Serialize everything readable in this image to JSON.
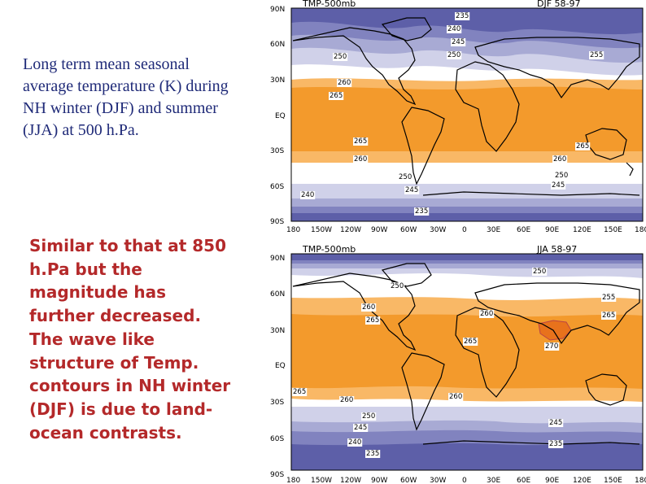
{
  "text": {
    "paragraph1": "Long term mean seasonal average temperature (K) during NH winter (DJF) and summer (JJA) at 500 h.Pa.",
    "paragraph2": "Similar to that at 850 h.Pa but the magnitude has further decreased. The wave like structure of Temp. contours in NH winter (DJF) is due to land-ocean contrasts."
  },
  "colors": {
    "band_235": "#5d5fa8",
    "band_240": "#8183bf",
    "band_245": "#a8aad4",
    "band_250": "#d0d1e9",
    "band_255": "#ffffff",
    "band_260": "#f9b866",
    "band_265": "#f39a2c",
    "band_270": "#e8721c",
    "coast": "#000000"
  },
  "axes": {
    "lat_labels": [
      "90N",
      "60N",
      "30N",
      "EQ",
      "30S",
      "60S",
      "90S"
    ],
    "lon_labels": [
      "180",
      "150W",
      "120W",
      "90W",
      "60W",
      "30W",
      "0",
      "30E",
      "60E",
      "90E",
      "120E",
      "150E",
      "180"
    ]
  },
  "maps": [
    {
      "title_left": "TMP-500mb",
      "title_right": "DJF  58-97",
      "contour_labels": [
        "235",
        "240",
        "245",
        "250",
        "250",
        "255",
        "260",
        "265",
        "265",
        "260",
        "250",
        "245",
        "240",
        "235",
        "245",
        "250",
        "260",
        "265"
      ]
    },
    {
      "title_left": "TMP-500mb",
      "title_right": "JJA  58-97",
      "contour_labels": [
        "250",
        "250",
        "255",
        "260",
        "265",
        "260",
        "265",
        "270",
        "265",
        "260",
        "265",
        "260",
        "250",
        "245",
        "245",
        "240",
        "235",
        "235"
      ]
    }
  ]
}
